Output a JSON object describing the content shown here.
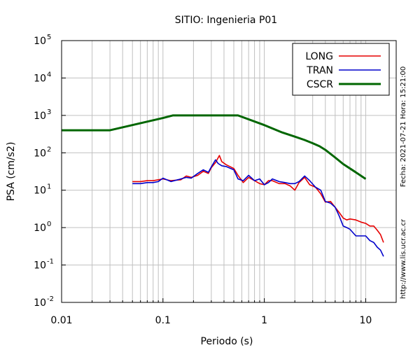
{
  "chart_data": {
    "type": "line",
    "title": "SITIO: Ingenieria P01",
    "xlabel": "Periodo (s)",
    "ylabel": "PSA (cm/s2)",
    "x_scale": "log",
    "y_scale": "log",
    "xlim": [
      0.01,
      20
    ],
    "ylim": [
      0.01,
      100000
    ],
    "grid": true,
    "legend_position": "top-right",
    "x_ticks": [
      {
        "value": 0.01,
        "label": "0.01"
      },
      {
        "value": 0.1,
        "label": "0.1"
      },
      {
        "value": 1,
        "label": "1"
      },
      {
        "value": 10,
        "label": "10"
      }
    ],
    "y_ticks": [
      {
        "value": 0.01,
        "base": "10",
        "exp": "-2"
      },
      {
        "value": 0.1,
        "base": "10",
        "exp": "-1"
      },
      {
        "value": 1,
        "base": "10",
        "exp": "0"
      },
      {
        "value": 10,
        "base": "10",
        "exp": "1"
      },
      {
        "value": 100,
        "base": "10",
        "exp": "2"
      },
      {
        "value": 1000,
        "base": "10",
        "exp": "3"
      },
      {
        "value": 10000,
        "base": "10",
        "exp": "4"
      },
      {
        "value": 100000,
        "base": "10",
        "exp": "5"
      }
    ],
    "series": [
      {
        "name": "LONG",
        "color": "#e60000",
        "x": [
          0.05,
          0.06,
          0.07,
          0.08,
          0.09,
          0.1,
          0.12,
          0.15,
          0.17,
          0.19,
          0.22,
          0.25,
          0.28,
          0.3,
          0.33,
          0.36,
          0.38,
          0.42,
          0.5,
          0.55,
          0.62,
          0.7,
          0.8,
          0.9,
          1.0,
          1.1,
          1.2,
          1.4,
          1.6,
          1.8,
          2.0,
          2.2,
          2.5,
          2.8,
          3.2,
          3.6,
          4.0,
          4.5,
          5.0,
          5.5,
          6.0,
          6.5,
          7.0,
          8.0,
          9.0,
          10.0,
          11.0,
          12.0,
          13.0,
          14.0,
          15.0
        ],
        "y": [
          17,
          17,
          18,
          18,
          19,
          20,
          18,
          19,
          24,
          22,
          25,
          32,
          28,
          40,
          55,
          85,
          58,
          48,
          38,
          25,
          16,
          22,
          18,
          15,
          14,
          18,
          18,
          15,
          15,
          13,
          10,
          16,
          22,
          14,
          12,
          8,
          4.8,
          5,
          3.5,
          2.5,
          1.8,
          1.6,
          1.7,
          1.6,
          1.4,
          1.3,
          1.1,
          1.1,
          0.85,
          0.65,
          0.4
        ]
      },
      {
        "name": "TRAN",
        "color": "#0000cc",
        "x": [
          0.05,
          0.06,
          0.07,
          0.08,
          0.09,
          0.1,
          0.12,
          0.15,
          0.17,
          0.19,
          0.22,
          0.25,
          0.28,
          0.3,
          0.33,
          0.35,
          0.38,
          0.42,
          0.5,
          0.55,
          0.62,
          0.7,
          0.8,
          0.9,
          1.0,
          1.1,
          1.2,
          1.4,
          1.6,
          1.8,
          2.0,
          2.2,
          2.5,
          2.8,
          3.2,
          3.6,
          4.0,
          4.5,
          5.0,
          5.5,
          6.0,
          6.5,
          7.0,
          8.0,
          9.0,
          10.0,
          11.0,
          12.0,
          13.0,
          14.0,
          15.0
        ],
        "y": [
          15,
          15,
          16,
          16,
          17,
          21,
          17,
          20,
          22,
          21,
          28,
          35,
          30,
          42,
          65,
          52,
          45,
          43,
          35,
          20,
          18,
          25,
          18,
          20,
          14,
          16,
          20,
          17,
          16,
          15,
          15,
          17,
          24,
          18,
          12,
          10,
          5,
          4.5,
          3.5,
          2,
          1.1,
          1.0,
          0.9,
          0.6,
          0.6,
          0.6,
          0.45,
          0.4,
          0.3,
          0.25,
          0.17
        ]
      },
      {
        "name": "CSCR",
        "color": "#006600",
        "x": [
          0.01,
          0.03,
          0.1,
          0.125,
          0.55,
          1.0,
          1.5,
          2.0,
          2.5,
          3.0,
          3.5,
          4.0,
          5.0,
          6.0,
          8.0,
          10.0
        ],
        "y": [
          400,
          400,
          850,
          1000,
          1000,
          550,
          350,
          270,
          220,
          180,
          150,
          120,
          75,
          50,
          30,
          20
        ]
      }
    ],
    "side_text_right": "Fecha: 2021-07-21 Hora: 15:21:00",
    "side_text_bottom": "http://www.lis.ucr.ac.cr"
  }
}
